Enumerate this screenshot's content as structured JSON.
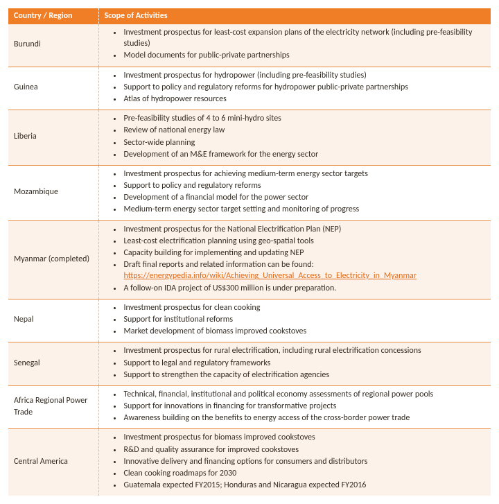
{
  "table": {
    "header": {
      "col1": "Country / Region",
      "col2": "Scope of Activities"
    },
    "rows": [
      {
        "country": "Burundi",
        "alt": true,
        "items": [
          {
            "text": "Investment prospectus for least-cost expansion plans of the electricity network (including pre-feasibility studies)"
          },
          {
            "text": "Model documents for public-private partnerships"
          }
        ]
      },
      {
        "country": "Guinea",
        "alt": false,
        "items": [
          {
            "text": "Investment prospectus for hydropower (including pre-feasibility studies)"
          },
          {
            "text": "Support to policy and regulatory reforms for hydropower public-private partnerships"
          },
          {
            "text": "Atlas of hydropower resources"
          }
        ]
      },
      {
        "country": "Liberia",
        "alt": true,
        "items": [
          {
            "text": "Pre-feasibility studies of 4 to 6 mini-hydro sites"
          },
          {
            "text": "Review of national energy law"
          },
          {
            "text": "Sector-wide planning"
          },
          {
            "text": "Development of an M&E framework for the energy sector"
          }
        ]
      },
      {
        "country": "Mozambique",
        "alt": false,
        "items": [
          {
            "text": "Investment prospectus for achieving medium-term energy sector targets"
          },
          {
            "text": "Support to policy and regulatory reforms"
          },
          {
            "text": "Development of a financial model for the power sector"
          },
          {
            "text": "Medium-term energy sector target setting and monitoring of progress"
          }
        ]
      },
      {
        "country": "Myanmar (completed)",
        "alt": true,
        "items": [
          {
            "text": "Investment prospectus for the National Electrification Plan (NEP)"
          },
          {
            "text": "Least-cost electrification planning using geo-spatial tools"
          },
          {
            "text": "Capacity building for implementing and updating NEP"
          },
          {
            "text": "Draft final reports and related information can be found: ",
            "link": "https://energypedia.info/wiki/Achieving_Universal_Access_to_Electricity_in_Myanmar"
          },
          {
            "text": "A follow-on IDA project of US$300 million is under preparation."
          }
        ]
      },
      {
        "country": "Nepal",
        "alt": false,
        "items": [
          {
            "text": "Investment prospectus for clean cooking"
          },
          {
            "text": "Support for institutional reforms"
          },
          {
            "text": "Market development of biomass improved cookstoves"
          }
        ]
      },
      {
        "country": "Senegal",
        "alt": true,
        "items": [
          {
            "text": "Investment prospectus for rural electrification, including rural electrification concessions"
          },
          {
            "text": "Support to legal and regulatory frameworks"
          },
          {
            "text": "Support to strengthen the capacity of electrification agencies"
          }
        ]
      },
      {
        "country": "Africa Regional Power Trade",
        "alt": false,
        "items": [
          {
            "text": "Technical, financial, institutional and political economy assessments of regional power pools"
          },
          {
            "text": "Support for innovations in financing for transformative projects"
          },
          {
            "text": "Awareness building on the benefits to energy access of the cross-border power trade"
          }
        ]
      },
      {
        "country": "Central America",
        "alt": true,
        "items": [
          {
            "text": "Investment prospectus for biomass improved cookstoves"
          },
          {
            "text": "R&D and quality assurance for improved cookstoves"
          },
          {
            "text": "Innovative delivery and financing options for consumers and distributors"
          },
          {
            "text": "Clean cooking roadmaps for 2030"
          },
          {
            "text": "Guatemala expected FY2015; Honduras and Nicaragua expected FY2016"
          }
        ]
      }
    ]
  }
}
